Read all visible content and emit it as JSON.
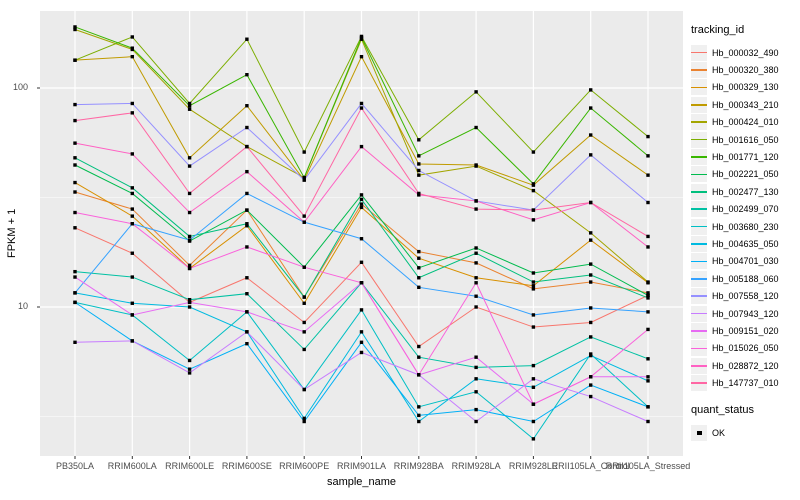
{
  "chart_data": {
    "type": "line",
    "title": "",
    "xlabel": "sample_name",
    "ylabel": "FPKM + 1",
    "x_categories": [
      "PB350LA",
      "RRIM600LA",
      "RRIM600LE",
      "RRIM600SE",
      "RRIM600PE",
      "RRIM901LA",
      "RRIM928BA",
      "RRIM928LA",
      "RRIM928LE",
      "RRII105LA_Control",
      "RRII105LA_Stressed"
    ],
    "y_axis": {
      "scale": "log10",
      "major_ticks": [
        100,
        10
      ],
      "minor_gridlines": [
        31.623,
        3.162
      ],
      "range": [
        2.1,
        230
      ]
    },
    "grid": true,
    "panel_bg": "#EBEBEB",
    "grid_color": "#FFFFFF",
    "tick_color": "#333333",
    "tick_label_color": "#4d4d4d",
    "marker": "black-square",
    "legend": {
      "title": "tracking_id",
      "position": "right"
    },
    "quant_status_legend": {
      "title": "quant_status",
      "items": [
        {
          "label": "OK",
          "marker": "black-square"
        }
      ]
    },
    "series": [
      {
        "name": "Hb_000032_490",
        "color": "#F8766D",
        "values": [
          23,
          17.6,
          10.5,
          13.6,
          8.5,
          16,
          6.6,
          10,
          8.1,
          8.5,
          11.3
        ]
      },
      {
        "name": "Hb_000320_380",
        "color": "#EA8331",
        "values": [
          33.5,
          28,
          15.5,
          27.7,
          11.1,
          29.5,
          17.9,
          15.9,
          12.1,
          13,
          11.6
        ]
      },
      {
        "name": "Hb_000329_130",
        "color": "#D89000",
        "values": [
          37,
          26,
          15,
          23.5,
          10.4,
          28.5,
          16.7,
          13.6,
          12.5,
          20.2,
          12.9
        ]
      },
      {
        "name": "Hb_000343_210",
        "color": "#C09B00",
        "values": [
          134,
          139,
          48,
          83,
          38,
          139,
          45,
          44.5,
          36,
          61,
          40
        ]
      },
      {
        "name": "Hb_000424_010",
        "color": "#A3A500",
        "values": [
          185,
          150,
          80,
          54,
          39,
          167,
          40,
          44,
          34,
          21.8,
          13
        ]
      },
      {
        "name": "Hb_001616_050",
        "color": "#7CAE00",
        "values": [
          134,
          171,
          85,
          167,
          51,
          172,
          58,
          96,
          51,
          98,
          60
        ]
      },
      {
        "name": "Hb_001771_120",
        "color": "#39B600",
        "values": [
          190,
          152,
          83,
          115,
          39,
          170,
          49,
          66,
          36.5,
          81,
          49
        ]
      },
      {
        "name": "Hb_002221_050",
        "color": "#00BB4E",
        "values": [
          44.5,
          33,
          20,
          27.7,
          15.2,
          32.5,
          15.1,
          18.6,
          14.3,
          15.7,
          11.3
        ]
      },
      {
        "name": "Hb_002477_130",
        "color": "#00BF7D",
        "values": [
          48,
          35,
          21,
          24,
          11.1,
          31,
          13.6,
          17.6,
          13,
          14,
          11
        ]
      },
      {
        "name": "Hb_002499_070",
        "color": "#00C1A3",
        "values": [
          14.5,
          13.7,
          10.8,
          11.5,
          6.4,
          12.9,
          5.9,
          5.3,
          5.4,
          7.3,
          5.8
        ]
      },
      {
        "name": "Hb_003680_230",
        "color": "#00BFC4",
        "values": [
          10.5,
          9.2,
          5.7,
          9.5,
          4.2,
          9.7,
          3.5,
          4.1,
          2.5,
          6.1,
          3.5
        ]
      },
      {
        "name": "Hb_004635_050",
        "color": "#00BAE0",
        "values": [
          11.6,
          10.4,
          10,
          7.7,
          3.1,
          7.7,
          3.0,
          4.7,
          4.3,
          6.0,
          4.6
        ]
      },
      {
        "name": "Hb_004701_030",
        "color": "#00B0F6",
        "values": [
          10.5,
          7.0,
          5.2,
          6.8,
          3.0,
          6.9,
          3.2,
          3.4,
          3.0,
          4.4,
          3.5
        ]
      },
      {
        "name": "Hb_005188_060",
        "color": "#35A2FF",
        "values": [
          11.6,
          24,
          20.2,
          33,
          24.4,
          20.5,
          12.3,
          11.2,
          9.2,
          9.9,
          9.5
        ]
      },
      {
        "name": "Hb_007558_120",
        "color": "#9590FF",
        "values": [
          84,
          85,
          44,
          66,
          38,
          85,
          42,
          30.5,
          27.7,
          49.5,
          30
        ]
      },
      {
        "name": "Hb_007943_120",
        "color": "#C77CFF",
        "values": [
          6.9,
          7.0,
          5.0,
          7.7,
          4.2,
          6.2,
          4.9,
          3.0,
          4.7,
          3.9,
          3.0
        ]
      },
      {
        "name": "Hb_009151_020",
        "color": "#E76BF3",
        "values": [
          13.7,
          9.2,
          10.5,
          9.5,
          7.7,
          12.9,
          4.9,
          5.9,
          3.6,
          4.8,
          4.8
        ]
      },
      {
        "name": "Hb_015026_050",
        "color": "#FA62DB",
        "values": [
          27,
          24,
          15,
          18.8,
          15.2,
          12.9,
          4.9,
          12.9,
          3.6,
          4.8,
          7.9
        ]
      },
      {
        "name": "Hb_028872_120",
        "color": "#FF61C3",
        "values": [
          56,
          50,
          27,
          41.5,
          24.4,
          54,
          32.5,
          30.5,
          25,
          30,
          18.8
        ]
      },
      {
        "name": "Hb_147737_010",
        "color": "#FF67A4",
        "values": [
          71,
          77,
          33,
          54,
          26,
          81,
          33,
          28,
          27.7,
          30,
          21
        ]
      }
    ]
  }
}
